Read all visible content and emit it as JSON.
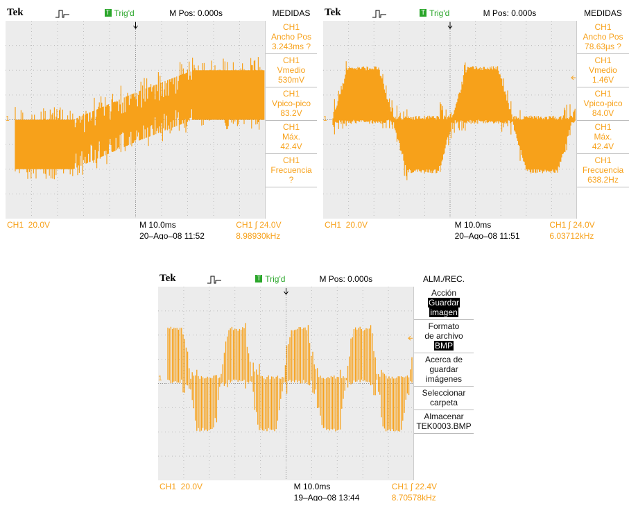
{
  "screens": [
    {
      "brand": "Tek",
      "trig_icon": "T",
      "trigger_state": "Trig'd",
      "position": "M Pos: 0.000s",
      "menu_title": "MEDIDAS",
      "menu_color": "#f7a11a",
      "menu": [
        {
          "lines": [
            "CH1",
            "Ancho Pos",
            "3.243ms ?"
          ]
        },
        {
          "lines": [
            "CH1",
            "Vmedio",
            "530mV"
          ]
        },
        {
          "lines": [
            "CH1",
            "Vpico-pico",
            "83.2V"
          ]
        },
        {
          "lines": [
            "CH1",
            "Máx.",
            "42.4V"
          ]
        },
        {
          "lines": [
            "CH1",
            "Frecuencia",
            "?"
          ]
        }
      ],
      "channel_marker": "1",
      "channel_scale": "CH1  20.0V",
      "timebase": "M 10.0ms",
      "trigger_level": "CH1 ∫ 24.0V",
      "date": "20–Ago–08 11:52",
      "frequency": "8.98930kHz"
    },
    {
      "brand": "Tek",
      "trig_icon": "T",
      "trigger_state": "Trig'd",
      "position": "M Pos: 0.000s",
      "menu_title": "MEDIDAS",
      "menu_color": "#f7a11a",
      "menu": [
        {
          "lines": [
            "CH1",
            "Ancho Pos",
            "78.63µs ?"
          ]
        },
        {
          "lines": [
            "CH1",
            "Vmedio",
            "1.46V"
          ]
        },
        {
          "lines": [
            "CH1",
            "Vpico-pico",
            "84.0V"
          ]
        },
        {
          "lines": [
            "CH1",
            "Máx.",
            "42.4V"
          ]
        },
        {
          "lines": [
            "CH1",
            "Frecuencia",
            "638.2Hz"
          ]
        }
      ],
      "channel_marker": "1",
      "channel_scale": "CH1  20.0V",
      "timebase": "M 10.0ms",
      "trigger_level": "CH1 ∫ 24.0V",
      "date": "20–Ago–08 11:51",
      "frequency": "6.03712kHz"
    },
    {
      "brand": "Tek",
      "trig_icon": "T",
      "trigger_state": "Trig'd",
      "position": "M Pos: 0.000s",
      "menu_title": "ALM./REC.",
      "menu_color": "#111111",
      "menu": [
        {
          "lines": [
            "Acción"
          ],
          "highlight": [
            "Guardar",
            "imagen"
          ]
        },
        {
          "lines": [
            "Formato",
            "de archivo"
          ],
          "highlight": [
            "BMP"
          ]
        },
        {
          "lines": [
            "Acerca de",
            "guardar",
            "imágenes"
          ]
        },
        {
          "lines": [
            "Seleccionar",
            "carpeta"
          ]
        },
        {
          "lines": [
            "Almacenar",
            "TEK0003.BMP"
          ]
        }
      ],
      "channel_marker": "1",
      "channel_scale": "CH1  20.0V",
      "timebase": "M 10.0ms",
      "trigger_level": "CH1 ∫ 22.4V",
      "date": "19–Ago–08 13:44",
      "frequency": "8.70578kHz"
    }
  ]
}
